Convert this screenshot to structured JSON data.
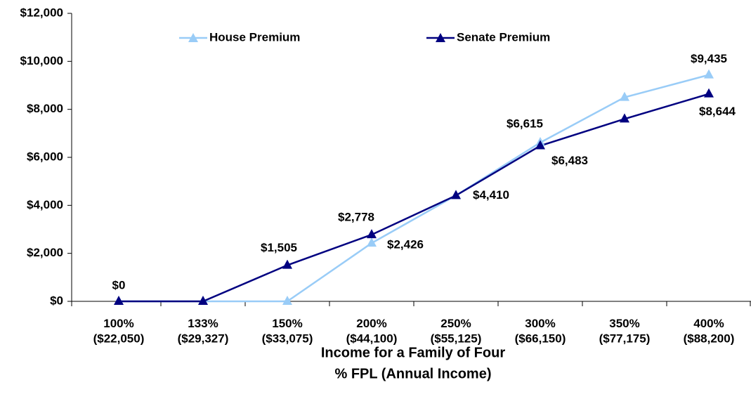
{
  "chart_data": {
    "type": "line",
    "categories": [
      "100%\n($22,050)",
      "133%\n($29,327)",
      "150%\n($33,075)",
      "200%\n($44,100)",
      "250%\n($55,125)",
      "300%\n($66,150)",
      "350%\n($77,175)",
      "400%\n($88,200)"
    ],
    "series": [
      {
        "name": "House Premium",
        "color": "#99ccf7",
        "values": [
          0,
          0,
          0,
          2426,
          4410,
          6615,
          8500,
          9435
        ],
        "value_labels": [
          "$0",
          null,
          null,
          "$2,426",
          "$4,410",
          "$6,615",
          null,
          "$9,435"
        ]
      },
      {
        "name": "Senate Premium",
        "color": "#000080",
        "values": [
          0,
          0,
          1505,
          2778,
          4410,
          6483,
          7600,
          8644
        ],
        "value_labels": [
          null,
          null,
          "$1,505",
          "$2,778",
          null,
          "$6,483",
          null,
          "$8,644"
        ]
      }
    ],
    "xlabel": [
      "Income for a Family of Four",
      "% FPL (Annual Income)"
    ],
    "ylim": [
      0,
      12000
    ],
    "yticks": [
      {
        "value": 0,
        "label": "$0"
      },
      {
        "value": 2000,
        "label": "$2,000"
      },
      {
        "value": 4000,
        "label": "$4,000"
      },
      {
        "value": 6000,
        "label": "$6,000"
      },
      {
        "value": 8000,
        "label": "$8,000"
      },
      {
        "value": 10000,
        "label": "$10,000"
      },
      {
        "value": 12000,
        "label": "$12,000"
      }
    ],
    "legend": "top",
    "grid": false
  }
}
